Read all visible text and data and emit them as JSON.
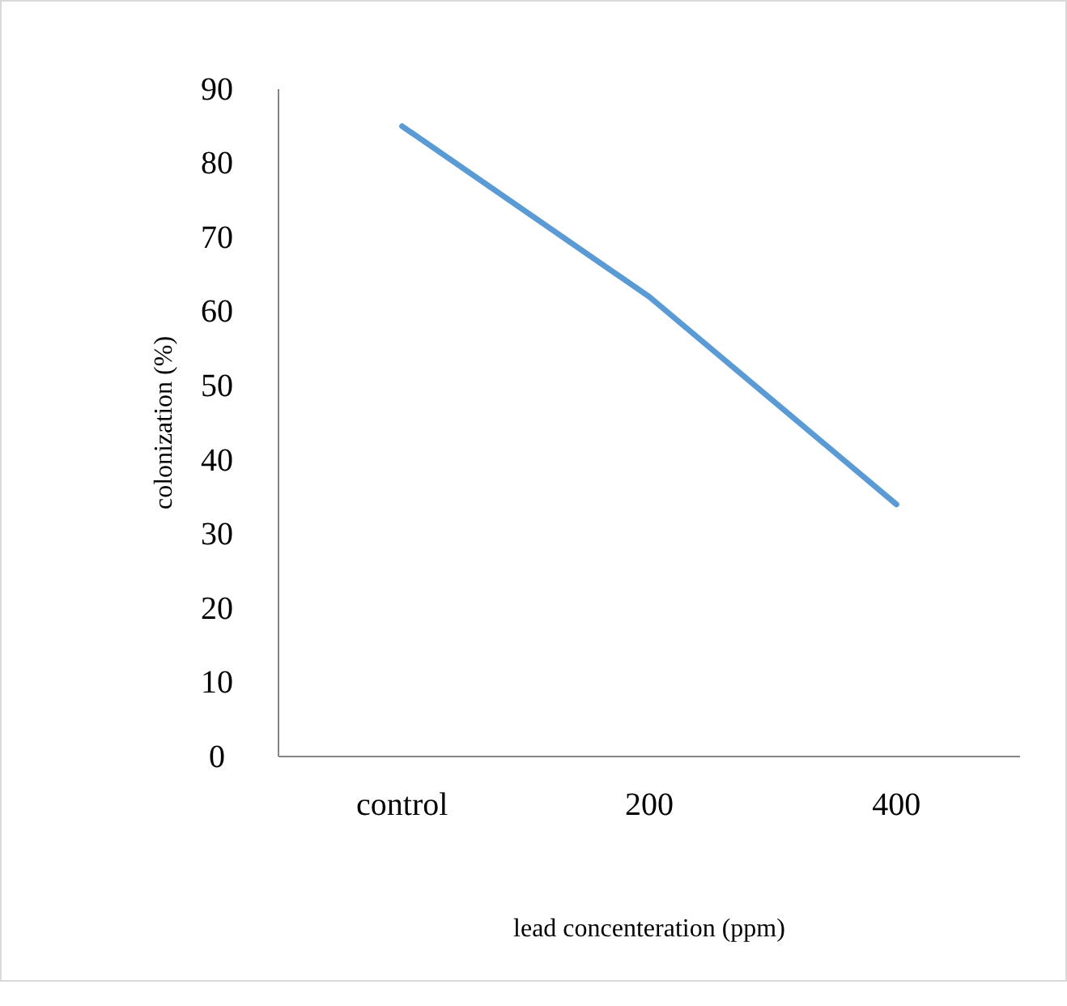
{
  "chart_data": {
    "type": "line",
    "xlabel": "lead concenteration (ppm)",
    "ylabel": "colonization (%)",
    "categories": [
      "control",
      "200",
      "400"
    ],
    "series": [
      {
        "color": "#5b9bd5",
        "values": [
          85,
          62,
          34
        ]
      }
    ],
    "ylim": [
      0,
      90
    ],
    "yticks": [
      0,
      10,
      20,
      30,
      40,
      50,
      60,
      70,
      80,
      90
    ],
    "grid": false,
    "marker": "none",
    "line_style": "solid"
  }
}
